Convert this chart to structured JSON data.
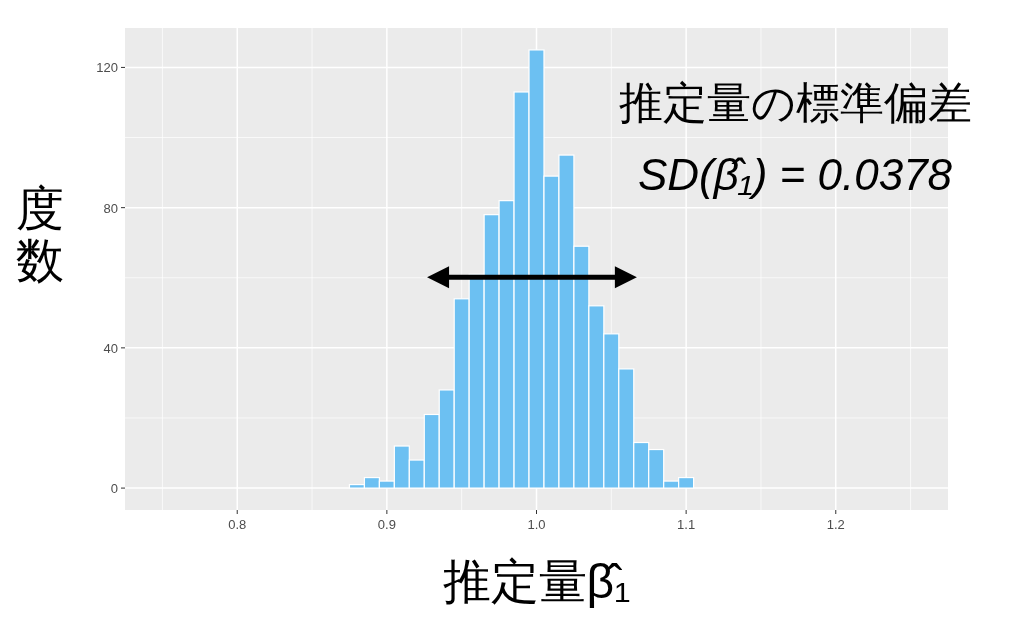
{
  "chart_data": {
    "type": "histogram",
    "xlabel": "推定量β̂₁",
    "ylabel": "度数",
    "annotations": [
      "推定量の標準偏差",
      "SD(β̂₁) = 0.0378"
    ],
    "bins": [
      0.875,
      0.885,
      0.895,
      0.905,
      0.915,
      0.925,
      0.935,
      0.945,
      0.955,
      0.965,
      0.975,
      0.985,
      0.995,
      1.005,
      1.015,
      1.025,
      1.035,
      1.045,
      1.055,
      1.065,
      1.075,
      1.085,
      1.095,
      1.105
    ],
    "values": [
      1,
      3,
      2,
      12,
      8,
      21,
      28,
      54,
      61,
      78,
      82,
      113,
      125,
      89,
      95,
      69,
      52,
      44,
      34,
      13,
      11,
      2,
      3
    ],
    "color": "#6cc0f2",
    "xlim": [
      0.725,
      1.275
    ],
    "ylim": [
      -6.25,
      131.25
    ],
    "xticks": [
      0.8,
      0.9,
      {
        "value": 1,
        "label": "1.0"
      },
      1.1,
      1.2
    ],
    "yticks": [
      0,
      40,
      80,
      120
    ],
    "grid": true
  }
}
